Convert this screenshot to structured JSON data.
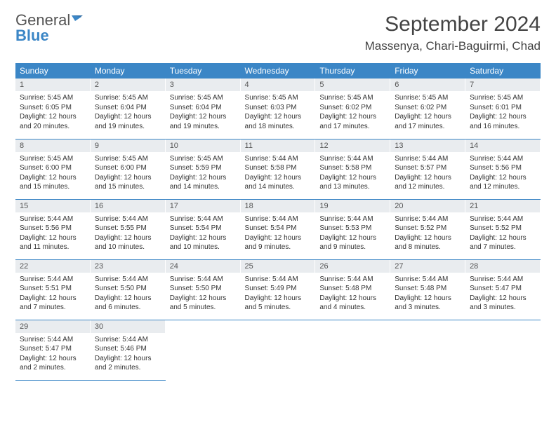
{
  "logo": {
    "text1": "General",
    "text2": "Blue"
  },
  "title": "September 2024",
  "location": "Massenya, Chari-Baguirmi, Chad",
  "colors": {
    "brand_blue": "#3b86c6",
    "daynum_bg": "#e9ecef",
    "text": "#333333",
    "title_text": "#444444"
  },
  "day_headers": [
    "Sunday",
    "Monday",
    "Tuesday",
    "Wednesday",
    "Thursday",
    "Friday",
    "Saturday"
  ],
  "weeks": [
    [
      {
        "n": "1",
        "sr": "5:45 AM",
        "ss": "6:05 PM",
        "dl": "12 hours and 20 minutes."
      },
      {
        "n": "2",
        "sr": "5:45 AM",
        "ss": "6:04 PM",
        "dl": "12 hours and 19 minutes."
      },
      {
        "n": "3",
        "sr": "5:45 AM",
        "ss": "6:04 PM",
        "dl": "12 hours and 19 minutes."
      },
      {
        "n": "4",
        "sr": "5:45 AM",
        "ss": "6:03 PM",
        "dl": "12 hours and 18 minutes."
      },
      {
        "n": "5",
        "sr": "5:45 AM",
        "ss": "6:02 PM",
        "dl": "12 hours and 17 minutes."
      },
      {
        "n": "6",
        "sr": "5:45 AM",
        "ss": "6:02 PM",
        "dl": "12 hours and 17 minutes."
      },
      {
        "n": "7",
        "sr": "5:45 AM",
        "ss": "6:01 PM",
        "dl": "12 hours and 16 minutes."
      }
    ],
    [
      {
        "n": "8",
        "sr": "5:45 AM",
        "ss": "6:00 PM",
        "dl": "12 hours and 15 minutes."
      },
      {
        "n": "9",
        "sr": "5:45 AM",
        "ss": "6:00 PM",
        "dl": "12 hours and 15 minutes."
      },
      {
        "n": "10",
        "sr": "5:45 AM",
        "ss": "5:59 PM",
        "dl": "12 hours and 14 minutes."
      },
      {
        "n": "11",
        "sr": "5:44 AM",
        "ss": "5:58 PM",
        "dl": "12 hours and 14 minutes."
      },
      {
        "n": "12",
        "sr": "5:44 AM",
        "ss": "5:58 PM",
        "dl": "12 hours and 13 minutes."
      },
      {
        "n": "13",
        "sr": "5:44 AM",
        "ss": "5:57 PM",
        "dl": "12 hours and 12 minutes."
      },
      {
        "n": "14",
        "sr": "5:44 AM",
        "ss": "5:56 PM",
        "dl": "12 hours and 12 minutes."
      }
    ],
    [
      {
        "n": "15",
        "sr": "5:44 AM",
        "ss": "5:56 PM",
        "dl": "12 hours and 11 minutes."
      },
      {
        "n": "16",
        "sr": "5:44 AM",
        "ss": "5:55 PM",
        "dl": "12 hours and 10 minutes."
      },
      {
        "n": "17",
        "sr": "5:44 AM",
        "ss": "5:54 PM",
        "dl": "12 hours and 10 minutes."
      },
      {
        "n": "18",
        "sr": "5:44 AM",
        "ss": "5:54 PM",
        "dl": "12 hours and 9 minutes."
      },
      {
        "n": "19",
        "sr": "5:44 AM",
        "ss": "5:53 PM",
        "dl": "12 hours and 9 minutes."
      },
      {
        "n": "20",
        "sr": "5:44 AM",
        "ss": "5:52 PM",
        "dl": "12 hours and 8 minutes."
      },
      {
        "n": "21",
        "sr": "5:44 AM",
        "ss": "5:52 PM",
        "dl": "12 hours and 7 minutes."
      }
    ],
    [
      {
        "n": "22",
        "sr": "5:44 AM",
        "ss": "5:51 PM",
        "dl": "12 hours and 7 minutes."
      },
      {
        "n": "23",
        "sr": "5:44 AM",
        "ss": "5:50 PM",
        "dl": "12 hours and 6 minutes."
      },
      {
        "n": "24",
        "sr": "5:44 AM",
        "ss": "5:50 PM",
        "dl": "12 hours and 5 minutes."
      },
      {
        "n": "25",
        "sr": "5:44 AM",
        "ss": "5:49 PM",
        "dl": "12 hours and 5 minutes."
      },
      {
        "n": "26",
        "sr": "5:44 AM",
        "ss": "5:48 PM",
        "dl": "12 hours and 4 minutes."
      },
      {
        "n": "27",
        "sr": "5:44 AM",
        "ss": "5:48 PM",
        "dl": "12 hours and 3 minutes."
      },
      {
        "n": "28",
        "sr": "5:44 AM",
        "ss": "5:47 PM",
        "dl": "12 hours and 3 minutes."
      }
    ],
    [
      {
        "n": "29",
        "sr": "5:44 AM",
        "ss": "5:47 PM",
        "dl": "12 hours and 2 minutes."
      },
      {
        "n": "30",
        "sr": "5:44 AM",
        "ss": "5:46 PM",
        "dl": "12 hours and 2 minutes."
      },
      null,
      null,
      null,
      null,
      null
    ]
  ],
  "labels": {
    "sunrise": "Sunrise: ",
    "sunset": "Sunset: ",
    "daylight": "Daylight: "
  }
}
